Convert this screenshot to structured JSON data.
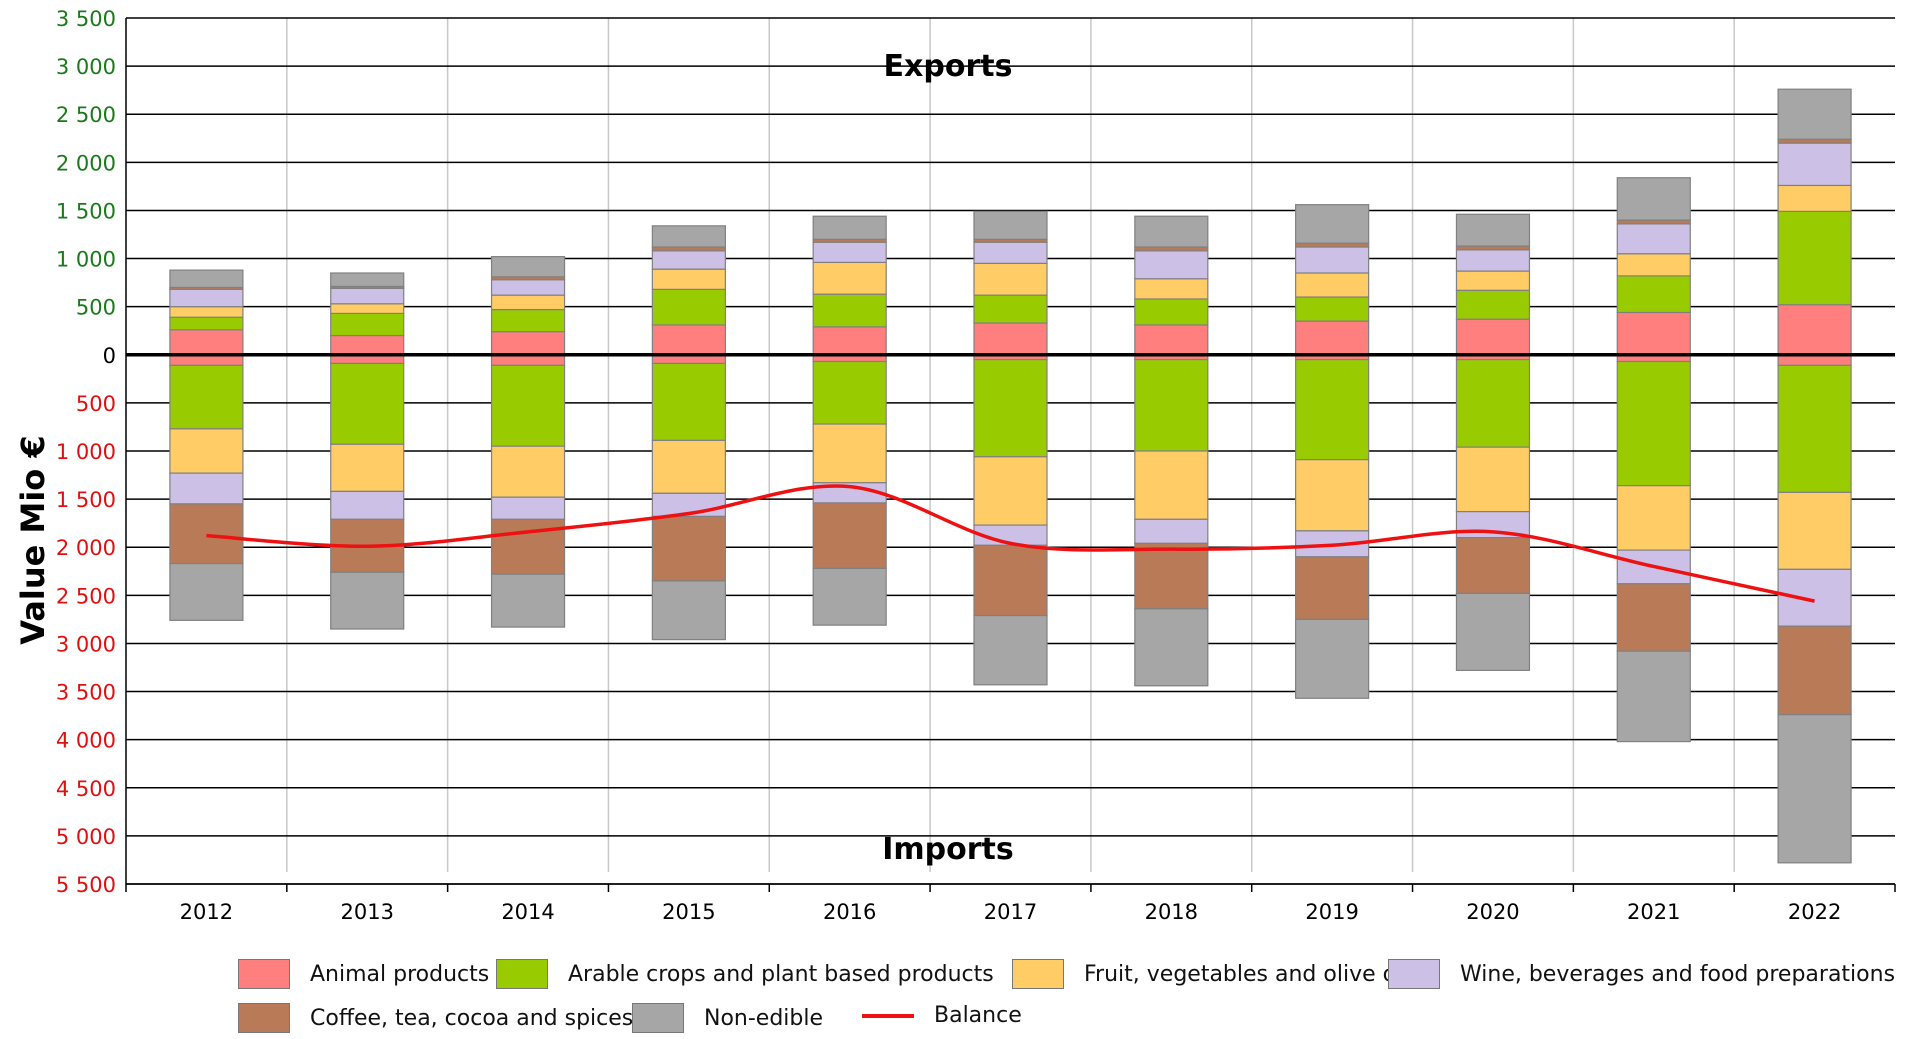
{
  "chart_data": {
    "type": "bar",
    "title": "",
    "xlabel": "",
    "ylabel": "Value Mio €",
    "annotations": {
      "exports": "Exports",
      "imports": "Imports"
    },
    "x_ticks": [
      "2012",
      "2013",
      "2014",
      "2015",
      "2016",
      "2017",
      "2018",
      "2019",
      "2020",
      "2021",
      "2022"
    ],
    "y_ticks_exports": [
      "3 500",
      "3 000",
      "2 500",
      "2 000",
      "1 500",
      "1 000",
      "500",
      "0"
    ],
    "y_ticks_imports": [
      "500",
      "1 000",
      "1 500",
      "2 000",
      "2 500",
      "3 000",
      "3 500",
      "4 000",
      "4 500",
      "5 000",
      "5 500"
    ],
    "ylim": [
      -5500,
      3500
    ],
    "categories": [
      "2012",
      "2013",
      "2014",
      "2015",
      "2016",
      "2017",
      "2018",
      "2019",
      "2020",
      "2021",
      "2022"
    ],
    "series": [
      {
        "name": "Animal products",
        "color": "#ff7f7f",
        "exports": [
          260,
          200,
          240,
          310,
          290,
          330,
          310,
          350,
          370,
          440,
          520
        ],
        "imports": [
          110,
          90,
          110,
          90,
          70,
          50,
          50,
          50,
          50,
          70,
          110
        ]
      },
      {
        "name": "Arable crops and plant based products",
        "color": "#99cc00",
        "exports": [
          130,
          230,
          230,
          370,
          340,
          290,
          270,
          250,
          300,
          380,
          970
        ],
        "imports": [
          660,
          840,
          840,
          800,
          650,
          1010,
          950,
          1040,
          910,
          1290,
          1320
        ]
      },
      {
        "name": "Fruit, vegetables and olive oil",
        "color": "#ffcc66",
        "exports": [
          110,
          100,
          150,
          210,
          330,
          330,
          210,
          250,
          200,
          230,
          270
        ],
        "imports": [
          460,
          490,
          530,
          550,
          610,
          710,
          710,
          740,
          670,
          670,
          800
        ]
      },
      {
        "name": "Wine, beverages and food preparations",
        "color": "#ccc0e6",
        "exports": [
          180,
          160,
          160,
          190,
          210,
          220,
          290,
          270,
          220,
          310,
          440
        ],
        "imports": [
          320,
          290,
          230,
          240,
          210,
          210,
          250,
          270,
          270,
          350,
          590
        ]
      },
      {
        "name": "Coffee, tea, cocoa and spices",
        "color": "#b97a57",
        "exports": [
          20,
          20,
          30,
          40,
          30,
          30,
          40,
          40,
          40,
          40,
          40
        ],
        "imports": [
          620,
          550,
          570,
          670,
          680,
          730,
          680,
          650,
          580,
          700,
          920
        ]
      },
      {
        "name": "Non-edible",
        "color": "#a6a6a6",
        "exports": [
          180,
          140,
          210,
          220,
          240,
          290,
          320,
          400,
          330,
          440,
          520
        ],
        "imports": [
          590,
          590,
          550,
          610,
          590,
          720,
          800,
          820,
          800,
          940,
          1540
        ]
      }
    ],
    "balance": {
      "name": "Balance",
      "color": "#ee1111",
      "values": [
        -1880,
        -1990,
        -1840,
        -1650,
        -1370,
        -1960,
        -2020,
        -1980,
        -1840,
        -2200,
        -2560
      ]
    }
  }
}
